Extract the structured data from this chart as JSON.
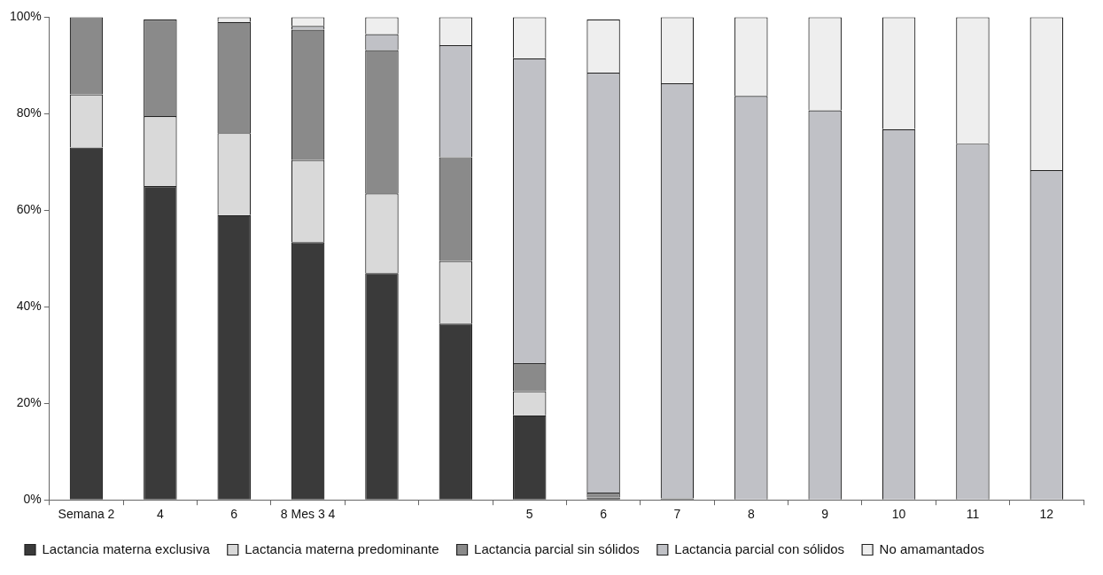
{
  "chart_data": {
    "type": "bar",
    "stacked": true,
    "categories": [
      "Semana 2",
      "4",
      "6",
      "8 Mes 3 4",
      null,
      null,
      "5",
      "6",
      "7",
      "8",
      "9",
      "10",
      "11",
      "12"
    ],
    "series": [
      {
        "name": "Lactancia materna exclusiva",
        "color": "#3a3a3a",
        "values": [
          73,
          65,
          59,
          53.4,
          47,
          36.5,
          17.5,
          0.5,
          0.3,
          0,
          0,
          0,
          0,
          0
        ]
      },
      {
        "name": "Lactancia materna predominante",
        "color": "#d9d9d9",
        "values": [
          11,
          14.5,
          17,
          17,
          16.5,
          13,
          5,
          null,
          0,
          0,
          0,
          0,
          0,
          0
        ]
      },
      {
        "name": "Lactancia parcial sin sólidos",
        "color": "#8a8a8a",
        "values": [
          16,
          20,
          23,
          27,
          29.7,
          21.5,
          5.8,
          1,
          0,
          0,
          0,
          0,
          0,
          0
        ]
      },
      {
        "name": "Lactancia parcial con sólidos",
        "color": "#c0c1c6",
        "values": [
          0,
          0,
          0,
          0.8,
          3.3,
          23.2,
          63.2,
          87,
          86,
          83.7,
          80.7,
          76.8,
          73.8,
          68.3
        ]
      },
      {
        "name": "No amamantados",
        "color": "#eeeeee",
        "values": [
          0,
          null,
          1,
          1.8,
          3.5,
          5.8,
          8.5,
          11,
          13.7,
          16.3,
          19.3,
          23.2,
          26.2,
          31.7
        ]
      }
    ],
    "ylim": [
      0,
      100
    ],
    "yticks": [
      {
        "value": 0,
        "label": "0%"
      },
      {
        "value": 20,
        "label": "20%"
      },
      {
        "value": 40,
        "label": "40%"
      },
      {
        "value": 60,
        "label": "60%"
      },
      {
        "value": 80,
        "label": "80%"
      },
      {
        "value": 100,
        "label": "100%"
      }
    ],
    "legend": "bottom"
  }
}
